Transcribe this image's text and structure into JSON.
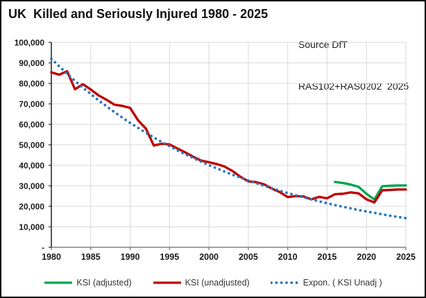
{
  "header": {
    "title": "UK  Killed and Seriously Injured 1980 - 2025",
    "source_line1": "Source DfT",
    "source_line2": "RAS102+RAS0202  2025"
  },
  "chart_data": {
    "type": "line",
    "title": "UK  Killed and Seriously Injured 1980 - 2025",
    "x_start": 1980,
    "x_end": 2025,
    "xticks": [
      1980,
      1985,
      1990,
      1995,
      2000,
      2005,
      2010,
      2015,
      2020,
      2025
    ],
    "ylim": [
      0,
      100000
    ],
    "ytick_interval": 10000,
    "ytick_labels": [
      "-",
      "10,000",
      "20,000",
      "30,000",
      "40,000",
      "50,000",
      "60,000",
      "70,000",
      "80,000",
      "90,000",
      "100,000"
    ],
    "grid": true,
    "legend_position": "bottom",
    "series": [
      {
        "name": "KSI (adjusted)",
        "color": "#00A550",
        "line_style": "solid",
        "start_year": 2016,
        "values": [
          31900,
          31400,
          30600,
          29500,
          26100,
          23300,
          29800,
          30000,
          30200,
          30200
        ]
      },
      {
        "name": "KSI (unadjusted)",
        "color": "#C00000",
        "line_style": "solid",
        "start_year": 1980,
        "values": [
          85400,
          84200,
          85900,
          77100,
          79600,
          77000,
          74100,
          72000,
          69600,
          69000,
          68000,
          62000,
          57900,
          49700,
          50500,
          50200,
          48200,
          46300,
          44200,
          42300,
          41500,
          40600,
          39400,
          37200,
          34400,
          32200,
          31800,
          30700,
          28600,
          26900,
          24500,
          25000,
          24800,
          23400,
          24600,
          23900,
          25900,
          26100,
          26800,
          26300,
          23400,
          21900,
          27800,
          28000,
          28200,
          28200
        ]
      },
      {
        "name": "Expon. ( KSI Unadj )",
        "color": "#2878BE",
        "line_style": "dotted",
        "start_year": 1980,
        "values": [
          92000,
          88300,
          84700,
          81200,
          77900,
          74800,
          71700,
          68800,
          66000,
          63300,
          60700,
          58300,
          55900,
          53600,
          51400,
          49400,
          47300,
          45400,
          43600,
          41800,
          40100,
          38500,
          36900,
          35400,
          34000,
          32600,
          31300,
          30000,
          28800,
          27600,
          26500,
          25400,
          24400,
          23400,
          22400,
          21500,
          20600,
          19800,
          19000,
          18200,
          17500,
          16800,
          16100,
          15400,
          14800,
          14200
        ]
      }
    ],
    "colors": {
      "gridline": "#D9D9D9",
      "x_axis": "#808080",
      "y_axis": "#404040",
      "tick_text": "#1a1a1a"
    }
  }
}
